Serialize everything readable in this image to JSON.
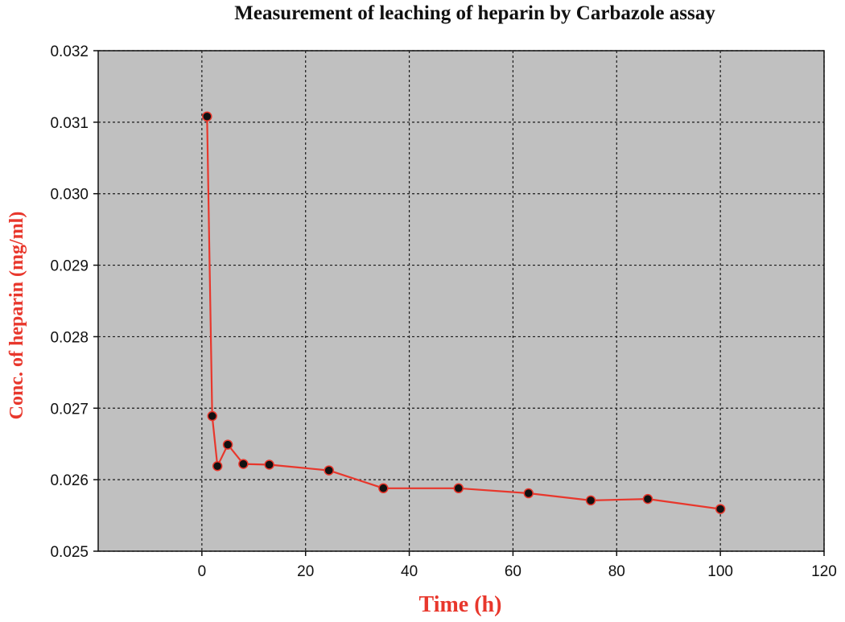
{
  "chart_data": {
    "type": "line",
    "title": "Measurement of leaching of heparin by Carbazole assay",
    "xlabel": "Time (h)",
    "ylabel": "Conc. of heparin (mg/ml)",
    "xlim": [
      -20,
      120
    ],
    "ylim": [
      0.025,
      0.032
    ],
    "xticks": [
      0,
      20,
      40,
      60,
      80,
      100,
      120
    ],
    "yticks": [
      "0.025",
      "0.026",
      "0.027",
      "0.028",
      "0.029",
      "0.030",
      "0.031",
      "0.032"
    ],
    "grid": true,
    "legend": "none",
    "series": [
      {
        "x": [
          1,
          2,
          3,
          5,
          8,
          13,
          24.5,
          35,
          49.5,
          63,
          75,
          86,
          100
        ],
        "y": [
          0.03108,
          0.02689,
          0.02619,
          0.02649,
          0.02622,
          0.02621,
          0.02613,
          0.02588,
          0.02588,
          0.02581,
          0.02571,
          0.02573,
          0.02559
        ]
      }
    ],
    "colors": {
      "line": "#e8372c",
      "marker": "#111111",
      "plot_background": "#c0c0c0",
      "grid": "#1a1a1a",
      "axis_title": "#e8372c"
    }
  }
}
